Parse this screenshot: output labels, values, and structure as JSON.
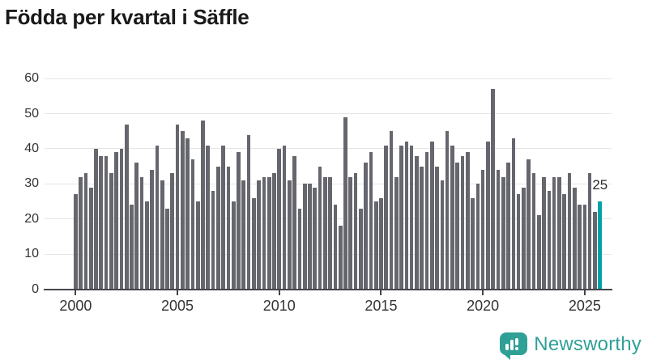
{
  "title": "Födda per kvartal i Säffle",
  "y_axis": {
    "ticks": [
      "60",
      "50",
      "40",
      "30",
      "20",
      "10",
      "0"
    ]
  },
  "x_axis": {
    "labels": [
      "2000",
      "2005",
      "2010",
      "2015",
      "2020",
      "2025"
    ]
  },
  "chart_data": {
    "type": "bar",
    "title": "Födda per kvartal i Säffle",
    "x_start": "2000-Q1",
    "frequency": "quarterly",
    "ylim": [
      0,
      60
    ],
    "grid": "horizontal",
    "bar_color": "#66666e",
    "values": [
      27,
      32,
      33,
      29,
      40,
      38,
      38,
      33,
      39,
      40,
      47,
      24,
      36,
      32,
      25,
      34,
      41,
      31,
      23,
      33,
      47,
      45,
      43,
      37,
      25,
      48,
      41,
      28,
      35,
      41,
      35,
      25,
      39,
      31,
      44,
      26,
      31,
      32,
      32,
      33,
      40,
      41,
      31,
      38,
      23,
      30,
      30,
      29,
      35,
      32,
      32,
      24,
      18,
      49,
      32,
      33,
      23,
      36,
      39,
      25,
      26,
      41,
      45,
      32,
      41,
      42,
      41,
      38,
      35,
      39,
      42,
      35,
      31,
      45,
      41,
      36,
      38,
      39,
      26,
      30,
      34,
      42,
      57,
      34,
      32,
      36,
      43,
      27,
      29,
      37,
      33,
      21,
      32,
      28,
      32,
      32,
      27,
      33,
      29,
      24,
      24,
      33,
      22,
      25
    ],
    "highlight": {
      "index": 103,
      "value": 25,
      "label": "25",
      "color": "#00a2a7"
    }
  },
  "logo": {
    "text": "Newsworthy",
    "color": "#2fa096",
    "icon": "newsworthy-speech-bubble-chart-icon"
  }
}
